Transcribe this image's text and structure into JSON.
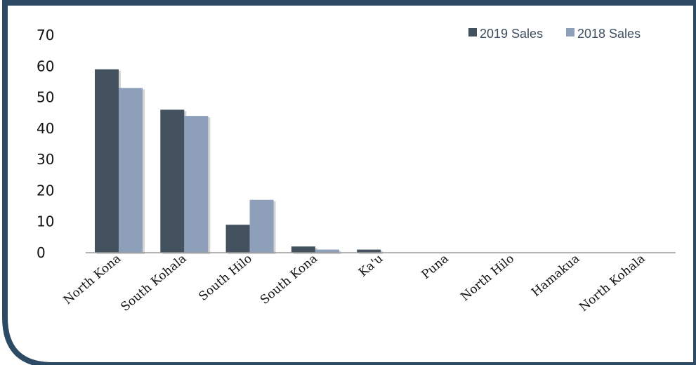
{
  "chart_data": {
    "type": "bar",
    "categories": [
      "North Kona",
      "South Kohala",
      "South Hilo",
      "South Kona",
      "Ka'u",
      "Puna",
      "North Hilo",
      "Hamakua",
      "North Kohala"
    ],
    "series": [
      {
        "name": "2019 Sales",
        "values": [
          59,
          46,
          9,
          2,
          1,
          0,
          0,
          0,
          0
        ],
        "color": "#44525f"
      },
      {
        "name": "2018 Sales",
        "values": [
          53,
          44,
          17,
          1,
          0,
          0,
          0,
          0,
          0
        ],
        "color": "#8e9fba"
      }
    ],
    "yticks": [
      "0",
      "10",
      "20",
      "30",
      "40",
      "50",
      "60",
      "70"
    ],
    "ylim": [
      0,
      70
    ],
    "grid": false,
    "legend_position": "top-right",
    "frame_color": "#2c4a63"
  }
}
